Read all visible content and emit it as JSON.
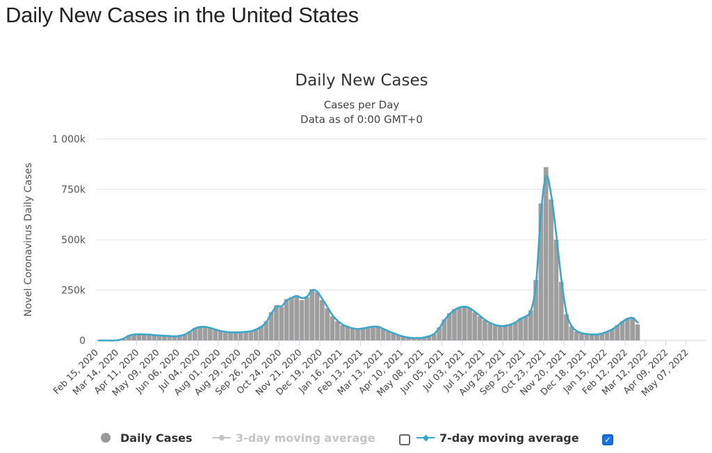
{
  "page": {
    "title": "Daily New Cases in the United States"
  },
  "colors": {
    "bars": "#9e9e9e",
    "avg7": "#3aa6c9",
    "grid": "#e6e6e6",
    "axis": "#ccd6eb",
    "checkbox": "#1a73e8",
    "legend_off": "#c4c4c4"
  },
  "chart_data": {
    "type": "bar",
    "title": "Daily New Cases",
    "subtitle_lines": [
      "Cases per Day",
      "Data as of 0:00 GMT+0"
    ],
    "ylabel": "Novel Coronavirus Daily Cases",
    "ylim": [
      0,
      1000000
    ],
    "y_ticks": [
      {
        "value": 0,
        "label": "0"
      },
      {
        "value": 250000,
        "label": "250k"
      },
      {
        "value": 500000,
        "label": "500k"
      },
      {
        "value": 750000,
        "label": "750k"
      },
      {
        "value": 1000000,
        "label": "1 000k"
      }
    ],
    "x_range_days": [
      0,
      840
    ],
    "x_ticks": [
      {
        "day": 0,
        "label": "Feb 15, 2020"
      },
      {
        "day": 28,
        "label": "Mar 14, 2020"
      },
      {
        "day": 56,
        "label": "Apr 11, 2020"
      },
      {
        "day": 84,
        "label": "May 09, 2020"
      },
      {
        "day": 112,
        "label": "Jun 06, 2020"
      },
      {
        "day": 140,
        "label": "Jul 04, 2020"
      },
      {
        "day": 168,
        "label": "Aug 01, 2020"
      },
      {
        "day": 196,
        "label": "Aug 29, 2020"
      },
      {
        "day": 224,
        "label": "Sep 26, 2020"
      },
      {
        "day": 252,
        "label": "Oct 24, 2020"
      },
      {
        "day": 280,
        "label": "Nov 21, 2020"
      },
      {
        "day": 308,
        "label": "Dec 19, 2020"
      },
      {
        "day": 336,
        "label": "Jan 16, 2021"
      },
      {
        "day": 364,
        "label": "Feb 13, 2021"
      },
      {
        "day": 392,
        "label": "Mar 13, 2021"
      },
      {
        "day": 420,
        "label": "Apr 10, 2021"
      },
      {
        "day": 448,
        "label": "May 08, 2021"
      },
      {
        "day": 476,
        "label": "Jun 05, 2021"
      },
      {
        "day": 504,
        "label": "Jul 03, 2021"
      },
      {
        "day": 532,
        "label": "Jul 31, 2021"
      },
      {
        "day": 560,
        "label": "Aug 28, 2021"
      },
      {
        "day": 588,
        "label": "Sep 25, 2021"
      },
      {
        "day": 616,
        "label": "Oct 23, 2021"
      },
      {
        "day": 644,
        "label": "Nov 20, 2021"
      },
      {
        "day": 672,
        "label": "Dec 18, 2021"
      },
      {
        "day": 700,
        "label": "Jan 15, 2022"
      },
      {
        "day": 728,
        "label": "Feb 12, 2022"
      },
      {
        "day": 756,
        "label": "Mar 12, 2022"
      },
      {
        "day": 784,
        "label": "Apr 09, 2022"
      },
      {
        "day": 812,
        "label": "May 07, 2022"
      }
    ],
    "series": [
      {
        "name": "Daily Cases",
        "kind": "bar",
        "interval_days": 7,
        "start_day": 0,
        "values": [
          0,
          0,
          0,
          0,
          1000,
          8000,
          25000,
          31000,
          30000,
          30000,
          29000,
          27000,
          25000,
          22000,
          21000,
          21000,
          22000,
          28000,
          45000,
          62000,
          68000,
          66000,
          60000,
          52000,
          45000,
          42000,
          38000,
          40000,
          41000,
          42000,
          45000,
          55000,
          70000,
          95000,
          140000,
          175000,
          165000,
          205000,
          215000,
          225000,
          200000,
          215000,
          255000,
          240000,
          200000,
          160000,
          120000,
          95000,
          75000,
          68000,
          58000,
          55000,
          60000,
          65000,
          70000,
          68000,
          55000,
          45000,
          35000,
          25000,
          18000,
          13000,
          12000,
          12000,
          15000,
          20000,
          32000,
          65000,
          105000,
          135000,
          155000,
          165000,
          170000,
          160000,
          140000,
          120000,
          100000,
          85000,
          75000,
          70000,
          72000,
          78000,
          90000,
          110000,
          120000,
          150000,
          300000,
          680000,
          860000,
          700000,
          500000,
          290000,
          130000,
          70000,
          45000,
          35000,
          32000,
          30000,
          30000,
          35000,
          45000,
          55000,
          75000,
          95000,
          110000,
          115000,
          80000
        ]
      },
      {
        "name": "7-day moving average",
        "kind": "line",
        "interval_days": 7,
        "start_day": 0,
        "values": [
          0,
          0,
          0,
          0,
          2000,
          10000,
          24000,
          30000,
          31000,
          30000,
          29000,
          27000,
          25000,
          23000,
          22000,
          21000,
          23000,
          30000,
          44000,
          60000,
          67000,
          67000,
          62000,
          54000,
          47000,
          43000,
          40000,
          40000,
          41000,
          43000,
          46000,
          55000,
          68000,
          92000,
          135000,
          168000,
          170000,
          198000,
          212000,
          220000,
          210000,
          218000,
          250000,
          242000,
          205000,
          165000,
          125000,
          98000,
          78000,
          68000,
          60000,
          57000,
          60000,
          65000,
          69000,
          68000,
          57000,
          46000,
          36000,
          26000,
          19000,
          14000,
          12000,
          12000,
          15000,
          21000,
          33000,
          62000,
          100000,
          130000,
          152000,
          164000,
          168000,
          160000,
          142000,
          122000,
          102000,
          87000,
          77000,
          72000,
          73000,
          79000,
          90000,
          108000,
          120000,
          148000,
          280000,
          640000,
          815000,
          720000,
          520000,
          300000,
          135000,
          72000,
          47000,
          36000,
          32000,
          30000,
          30000,
          35000,
          44000,
          55000,
          73000,
          93000,
          108000,
          112000,
          88000
        ]
      }
    ]
  },
  "legend": [
    {
      "label": "Daily Cases",
      "visible": true
    },
    {
      "label": "3-day moving average",
      "visible": false
    },
    {
      "label": "7-day moving average",
      "visible": true
    }
  ],
  "toggles": {
    "avg3_checked": false,
    "avg7_checked": true,
    "check_glyph": "✓"
  }
}
